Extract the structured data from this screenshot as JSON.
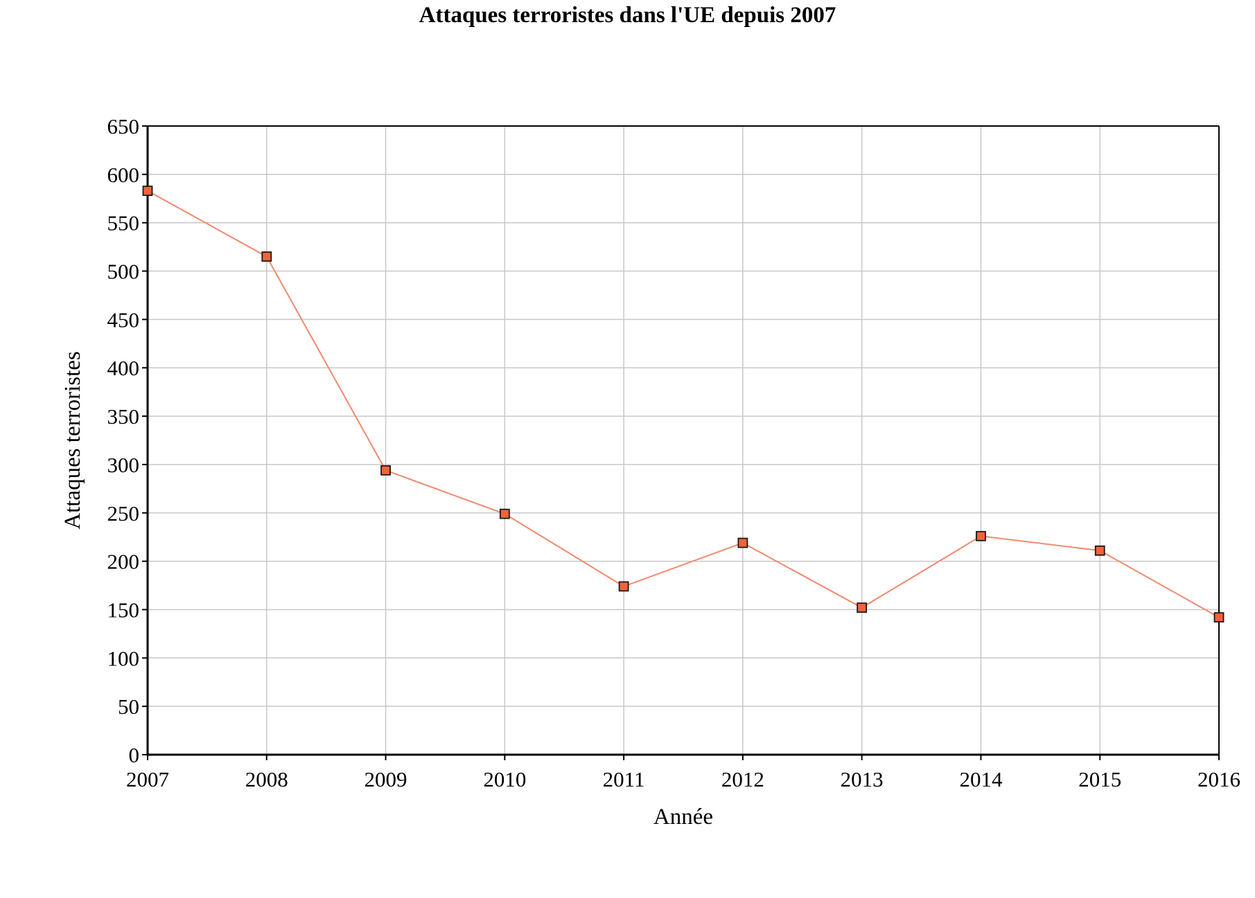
{
  "chart_data": {
    "type": "line",
    "title": "Attaques terroristes dans l'UE depuis 2007",
    "xlabel": "Année",
    "ylabel": "Attaques terroristes",
    "x": [
      2007,
      2008,
      2009,
      2010,
      2011,
      2012,
      2013,
      2014,
      2015,
      2016
    ],
    "series": [
      {
        "values": [
          583,
          515,
          294,
          249,
          174,
          219,
          152,
          226,
          211,
          142
        ]
      }
    ],
    "xlim": [
      2007,
      2016
    ],
    "ylim": [
      0,
      650
    ],
    "xticks": [
      "2007",
      "2008",
      "2009",
      "2010",
      "2011",
      "2012",
      "2013",
      "2014",
      "2015",
      "2016"
    ],
    "yticks": [
      "0",
      "50",
      "100",
      "150",
      "200",
      "250",
      "300",
      "350",
      "400",
      "450",
      "500",
      "550",
      "600",
      "650"
    ],
    "grid": true,
    "colors": {
      "line": "#f2896d",
      "marker_fill": "#f4623a",
      "marker_stroke": "#1a1a1a",
      "grid": "#c8c8c8",
      "axis": "#000000"
    }
  }
}
